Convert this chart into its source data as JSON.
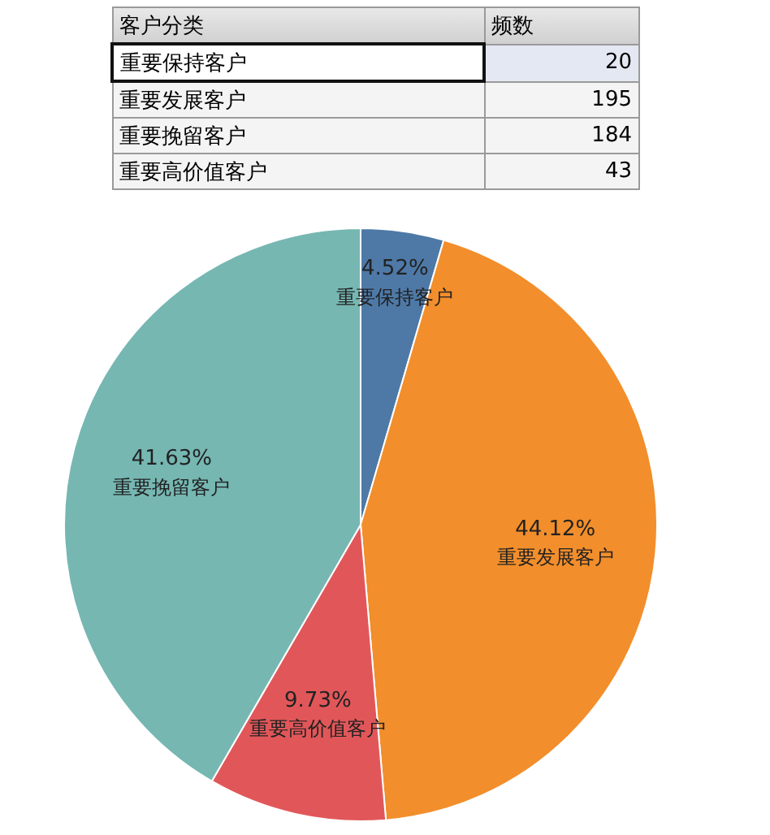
{
  "chart_data": [
    {
      "type": "other",
      "xlabel": "客户分类",
      "ylabel": "频数",
      "categories": [
        "重要保持客户",
        "重要发展客户",
        "重要挽留客户",
        "重要高价值客户"
      ],
      "values": [
        20,
        195,
        184,
        43
      ],
      "data_labels": true
    },
    {
      "type": "pie",
      "categories": [
        "重要保持客户",
        "重要发展客户",
        "重要高价值客户",
        "重要挽留客户"
      ],
      "values": [
        4.52,
        44.12,
        9.73,
        41.63
      ],
      "colors": [
        "#4e79a7",
        "#f28e2b",
        "#e15759",
        "#76b7b2"
      ],
      "value_labels": [
        "4.52%",
        "44.12%",
        "9.73%",
        "41.63%"
      ]
    }
  ]
}
